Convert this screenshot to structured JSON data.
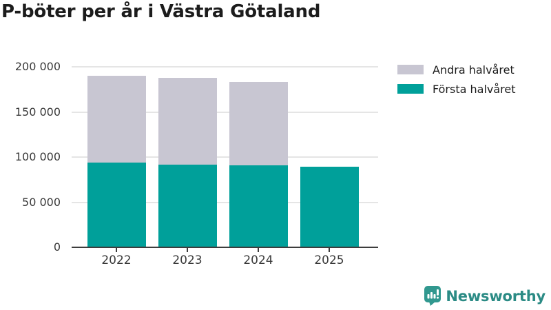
{
  "chart_data": {
    "type": "bar",
    "stacked": true,
    "title": "P-böter per år i Västra Götaland",
    "categories": [
      "2022",
      "2023",
      "2024",
      "2025"
    ],
    "series": [
      {
        "name": "Första halvåret",
        "color": "#00a09a",
        "values": [
          94000,
          91500,
          91000,
          89000
        ]
      },
      {
        "name": "Andra halvåret",
        "color": "#c8c6d2",
        "values": [
          96000,
          96500,
          92000,
          0
        ]
      }
    ],
    "totals": [
      190000,
      188000,
      183000,
      89000
    ],
    "xlabel": "",
    "ylabel": "",
    "ylim": [
      0,
      200000
    ],
    "yticks": [
      {
        "value": 0,
        "label": "0"
      },
      {
        "value": 50000,
        "label": "50 000"
      },
      {
        "value": 100000,
        "label": "100 000"
      },
      {
        "value": 150000,
        "label": "150 000"
      },
      {
        "value": 200000,
        "label": "200 000"
      }
    ],
    "legend_order": [
      "Andra halvåret",
      "Första halvåret"
    ],
    "legend_position": "top-right",
    "grid": true
  },
  "colors": {
    "first_half_bar": "#00a09a",
    "second_half_bar": "#c8c6d2",
    "gridline": "#e5e5e5",
    "axis_line": "#3d3d3d",
    "tick_text": "#3a3a3a",
    "title_text": "#1c1c1c",
    "logo_icon": "#31988f",
    "logo_text": "#2b8b85"
  },
  "logo": {
    "text": "Newsworthy"
  }
}
